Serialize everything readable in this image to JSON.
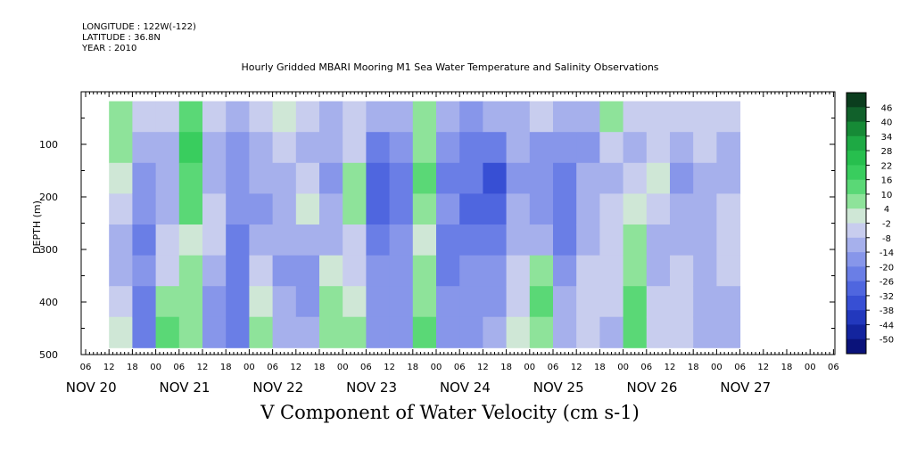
{
  "header": {
    "longitude": "LONGITUDE : 122W(-122)",
    "latitude": "LATITUDE : 36.8N",
    "year": "YEAR : 2010"
  },
  "chart_data": {
    "type": "heatmap",
    "title": "Hourly Gridded MBARI Mooring M1 Sea Water Temperature and Salinity Observations",
    "xlabel": "V Component of Water Velocity (cm s-1)",
    "ylabel": "DEPTH (m)",
    "y_ticks": [
      100,
      200,
      300,
      400,
      500
    ],
    "y_range": [
      500,
      0
    ],
    "x_tick_hours": [
      "06",
      "12",
      "18",
      "00",
      "06",
      "12",
      "18",
      "00",
      "06",
      "12",
      "18",
      "00",
      "06",
      "12",
      "18",
      "00",
      "06",
      "12",
      "18",
      "00",
      "06",
      "12",
      "18",
      "00",
      "06",
      "12",
      "18",
      "00",
      "06",
      "12",
      "18",
      "00",
      "06"
    ],
    "x_day_labels": [
      "NOV 20",
      "NOV 21",
      "NOV 22",
      "NOV 23",
      "NOV 24",
      "NOV 25",
      "NOV 26",
      "NOV 27"
    ],
    "colorbar_labels": [
      "46",
      "40",
      "34",
      "28",
      "22",
      "16",
      "10",
      "4",
      "-2",
      "-8",
      "-14",
      "-20",
      "-26",
      "-32",
      "-38",
      "-44",
      "-50"
    ],
    "colorbar_colors": [
      "#0b3d1e",
      "#11612b",
      "#168a36",
      "#1ea944",
      "#27bf4e",
      "#39cd5e",
      "#5ad876",
      "#8ee39a",
      "#cfe7d6",
      "#c8cdee",
      "#a6b0ec",
      "#8796ea",
      "#6a7ee6",
      "#4f66df",
      "#374fd4",
      "#2238bd",
      "#13249e",
      "#0a127a"
    ],
    "columns": [
      {
        "start": "NOV 20 12",
        "end": "NOV 20 18",
        "profile": [
          10,
          8,
          4,
          -4,
          -10,
          -12,
          -6,
          4
        ]
      },
      {
        "start": "NOV 20 18",
        "end": "NOV 21 00",
        "profile": [
          -4,
          -10,
          -14,
          -18,
          -20,
          -14,
          -20,
          -24
        ]
      },
      {
        "start": "NOV 21 00",
        "end": "NOV 21 06",
        "profile": [
          -2,
          -8,
          -12,
          -10,
          -6,
          -2,
          8,
          12
        ]
      },
      {
        "start": "NOV 21 06",
        "end": "NOV 21 12",
        "profile": [
          14,
          18,
          16,
          12,
          4,
          10,
          6,
          10
        ]
      },
      {
        "start": "NOV 21 12",
        "end": "NOV 21 18",
        "profile": [
          -6,
          -12,
          -10,
          -4,
          -6,
          -10,
          -14,
          -16
        ]
      },
      {
        "start": "NOV 21 18",
        "end": "NOV 22 00",
        "profile": [
          -8,
          -14,
          -18,
          -16,
          -20,
          -22,
          -24,
          -22
        ]
      },
      {
        "start": "NOV 22 00",
        "end": "NOV 22 06",
        "profile": [
          -6,
          -10,
          -12,
          -14,
          -10,
          -4,
          4,
          8
        ]
      },
      {
        "start": "NOV 22 06",
        "end": "NOV 22 12",
        "profile": [
          4,
          -6,
          -12,
          -8,
          -10,
          -14,
          -12,
          -8
        ]
      },
      {
        "start": "NOV 22 12",
        "end": "NOV 22 18",
        "profile": [
          -4,
          -10,
          -6,
          2,
          -8,
          -14,
          -16,
          -12
        ]
      },
      {
        "start": "NOV 22 18",
        "end": "NOV 23 00",
        "profile": [
          -8,
          -12,
          -14,
          -10,
          -8,
          4,
          8,
          10
        ]
      },
      {
        "start": "NOV 23 00",
        "end": "NOV 23 06",
        "profile": [
          -2,
          -6,
          8,
          6,
          -4,
          -2,
          4,
          6
        ]
      },
      {
        "start": "NOV 23 06",
        "end": "NOV 23 12",
        "profile": [
          -10,
          -22,
          -30,
          -26,
          -20,
          -18,
          -16,
          -14
        ]
      },
      {
        "start": "NOV 23 12",
        "end": "NOV 23 18",
        "profile": [
          -12,
          -18,
          -22,
          -20,
          -16,
          -14,
          -18,
          -16
        ]
      },
      {
        "start": "NOV 23 18",
        "end": "NOV 24 00",
        "profile": [
          6,
          10,
          12,
          8,
          4,
          6,
          10,
          14
        ]
      },
      {
        "start": "NOV 24 00",
        "end": "NOV 24 06",
        "profile": [
          -10,
          -16,
          -20,
          -18,
          -22,
          -20,
          -18,
          -16
        ]
      },
      {
        "start": "NOV 24 06",
        "end": "NOV 24 12",
        "profile": [
          -14,
          -20,
          -24,
          -26,
          -22,
          -18,
          -16,
          -14
        ]
      },
      {
        "start": "NOV 24 12",
        "end": "NOV 24 18",
        "profile": [
          -12,
          -22,
          -32,
          -28,
          -22,
          -18,
          -14,
          -12
        ]
      },
      {
        "start": "NOV 24 18",
        "end": "NOV 25 00",
        "profile": [
          -8,
          -12,
          -16,
          -12,
          -8,
          -4,
          -2,
          2
        ]
      },
      {
        "start": "NOV 25 00",
        "end": "NOV 25 06",
        "profile": [
          -6,
          -14,
          -18,
          -14,
          -8,
          8,
          12,
          6
        ]
      },
      {
        "start": "NOV 25 06",
        "end": "NOV 25 12",
        "profile": [
          -10,
          -18,
          -24,
          -22,
          -20,
          -16,
          -12,
          -8
        ]
      },
      {
        "start": "NOV 25 12",
        "end": "NOV 25 18",
        "profile": [
          -8,
          -14,
          -12,
          -10,
          -8,
          -6,
          -4,
          -2
        ]
      },
      {
        "start": "NOV 25 18",
        "end": "NOV 26 00",
        "profile": [
          6,
          -4,
          -8,
          -6,
          -4,
          -2,
          -6,
          -8
        ]
      },
      {
        "start": "NOV 26 00",
        "end": "NOV 26 06",
        "profile": [
          -4,
          -10,
          -6,
          4,
          8,
          10,
          14,
          12
        ]
      },
      {
        "start": "NOV 26 06",
        "end": "NOV 26 12",
        "profile": [
          -2,
          -6,
          4,
          -4,
          -8,
          -10,
          -6,
          -4
        ]
      },
      {
        "start": "NOV 26 12",
        "end": "NOV 26 18",
        "profile": [
          -6,
          -10,
          -14,
          -12,
          -8,
          -6,
          -4,
          -6
        ]
      },
      {
        "start": "NOV 26 18",
        "end": "NOV 27 00",
        "profile": [
          -2,
          -6,
          -8,
          -12,
          -10,
          -8,
          -10,
          -12
        ]
      },
      {
        "start": "NOV 27 00",
        "end": "NOV 27 06",
        "profile": [
          -4,
          -8,
          -10,
          -6,
          -4,
          -6,
          -8,
          -10
        ]
      }
    ]
  }
}
